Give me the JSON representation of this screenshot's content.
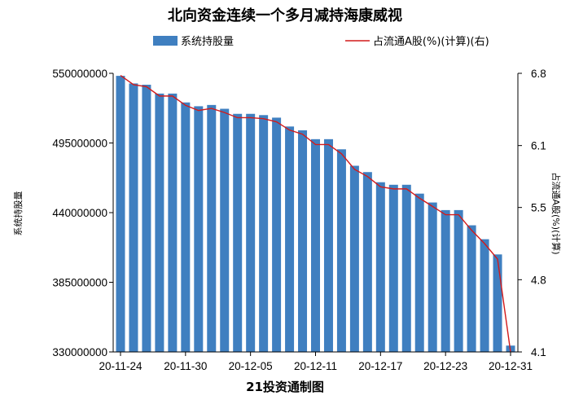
{
  "chart_data": {
    "type": "bar",
    "title": "北向资金连续一个多月减持海康威视",
    "ylabel": "系统持股量",
    "ylabel_right": "占流通A股(%)(计算)",
    "footer": "21投资通制图",
    "legend": [
      "系统持股量",
      "占流通A股(%)(计算)(右)"
    ],
    "legend_position": "top",
    "grid": false,
    "ylim": [
      330000000,
      550000000
    ],
    "y_ticks": [
      "550000000",
      "495000000",
      "440000000",
      "385000000",
      "330000000"
    ],
    "y2lim": [
      4.1,
      6.8
    ],
    "y2_ticks": [
      "6.8",
      "6.1",
      "5.5",
      "4.8",
      "4.1"
    ],
    "x_ticks": [
      "20-11-24",
      "20-11-30",
      "20-12-05",
      "20-12-11",
      "20-12-17",
      "20-12-23",
      "20-12-31"
    ],
    "bar_color": "#3f7fc0",
    "line_color": "#d21a1a",
    "series": [
      {
        "name": "系统持股量",
        "type": "bar",
        "axis": "left",
        "values": [
          548000000,
          542000000,
          541000000,
          534000000,
          534000000,
          527000000,
          524000000,
          525000000,
          522000000,
          518000000,
          518000000,
          517000000,
          515000000,
          508000000,
          505000000,
          498000000,
          498000000,
          490000000,
          477000000,
          472000000,
          464000000,
          462000000,
          462000000,
          455000000,
          448000000,
          442000000,
          442000000,
          430000000,
          419000000,
          407000000,
          335000000
        ]
      },
      {
        "name": "占流通A股(%)(计算)(右)",
        "type": "line",
        "axis": "right",
        "values": [
          6.78,
          6.69,
          6.67,
          6.58,
          6.58,
          6.49,
          6.44,
          6.46,
          6.42,
          6.37,
          6.37,
          6.36,
          6.33,
          6.25,
          6.21,
          6.11,
          6.11,
          6.02,
          5.87,
          5.8,
          5.7,
          5.68,
          5.68,
          5.59,
          5.51,
          5.43,
          5.43,
          5.28,
          5.15,
          5.0,
          4.1
        ]
      }
    ]
  }
}
